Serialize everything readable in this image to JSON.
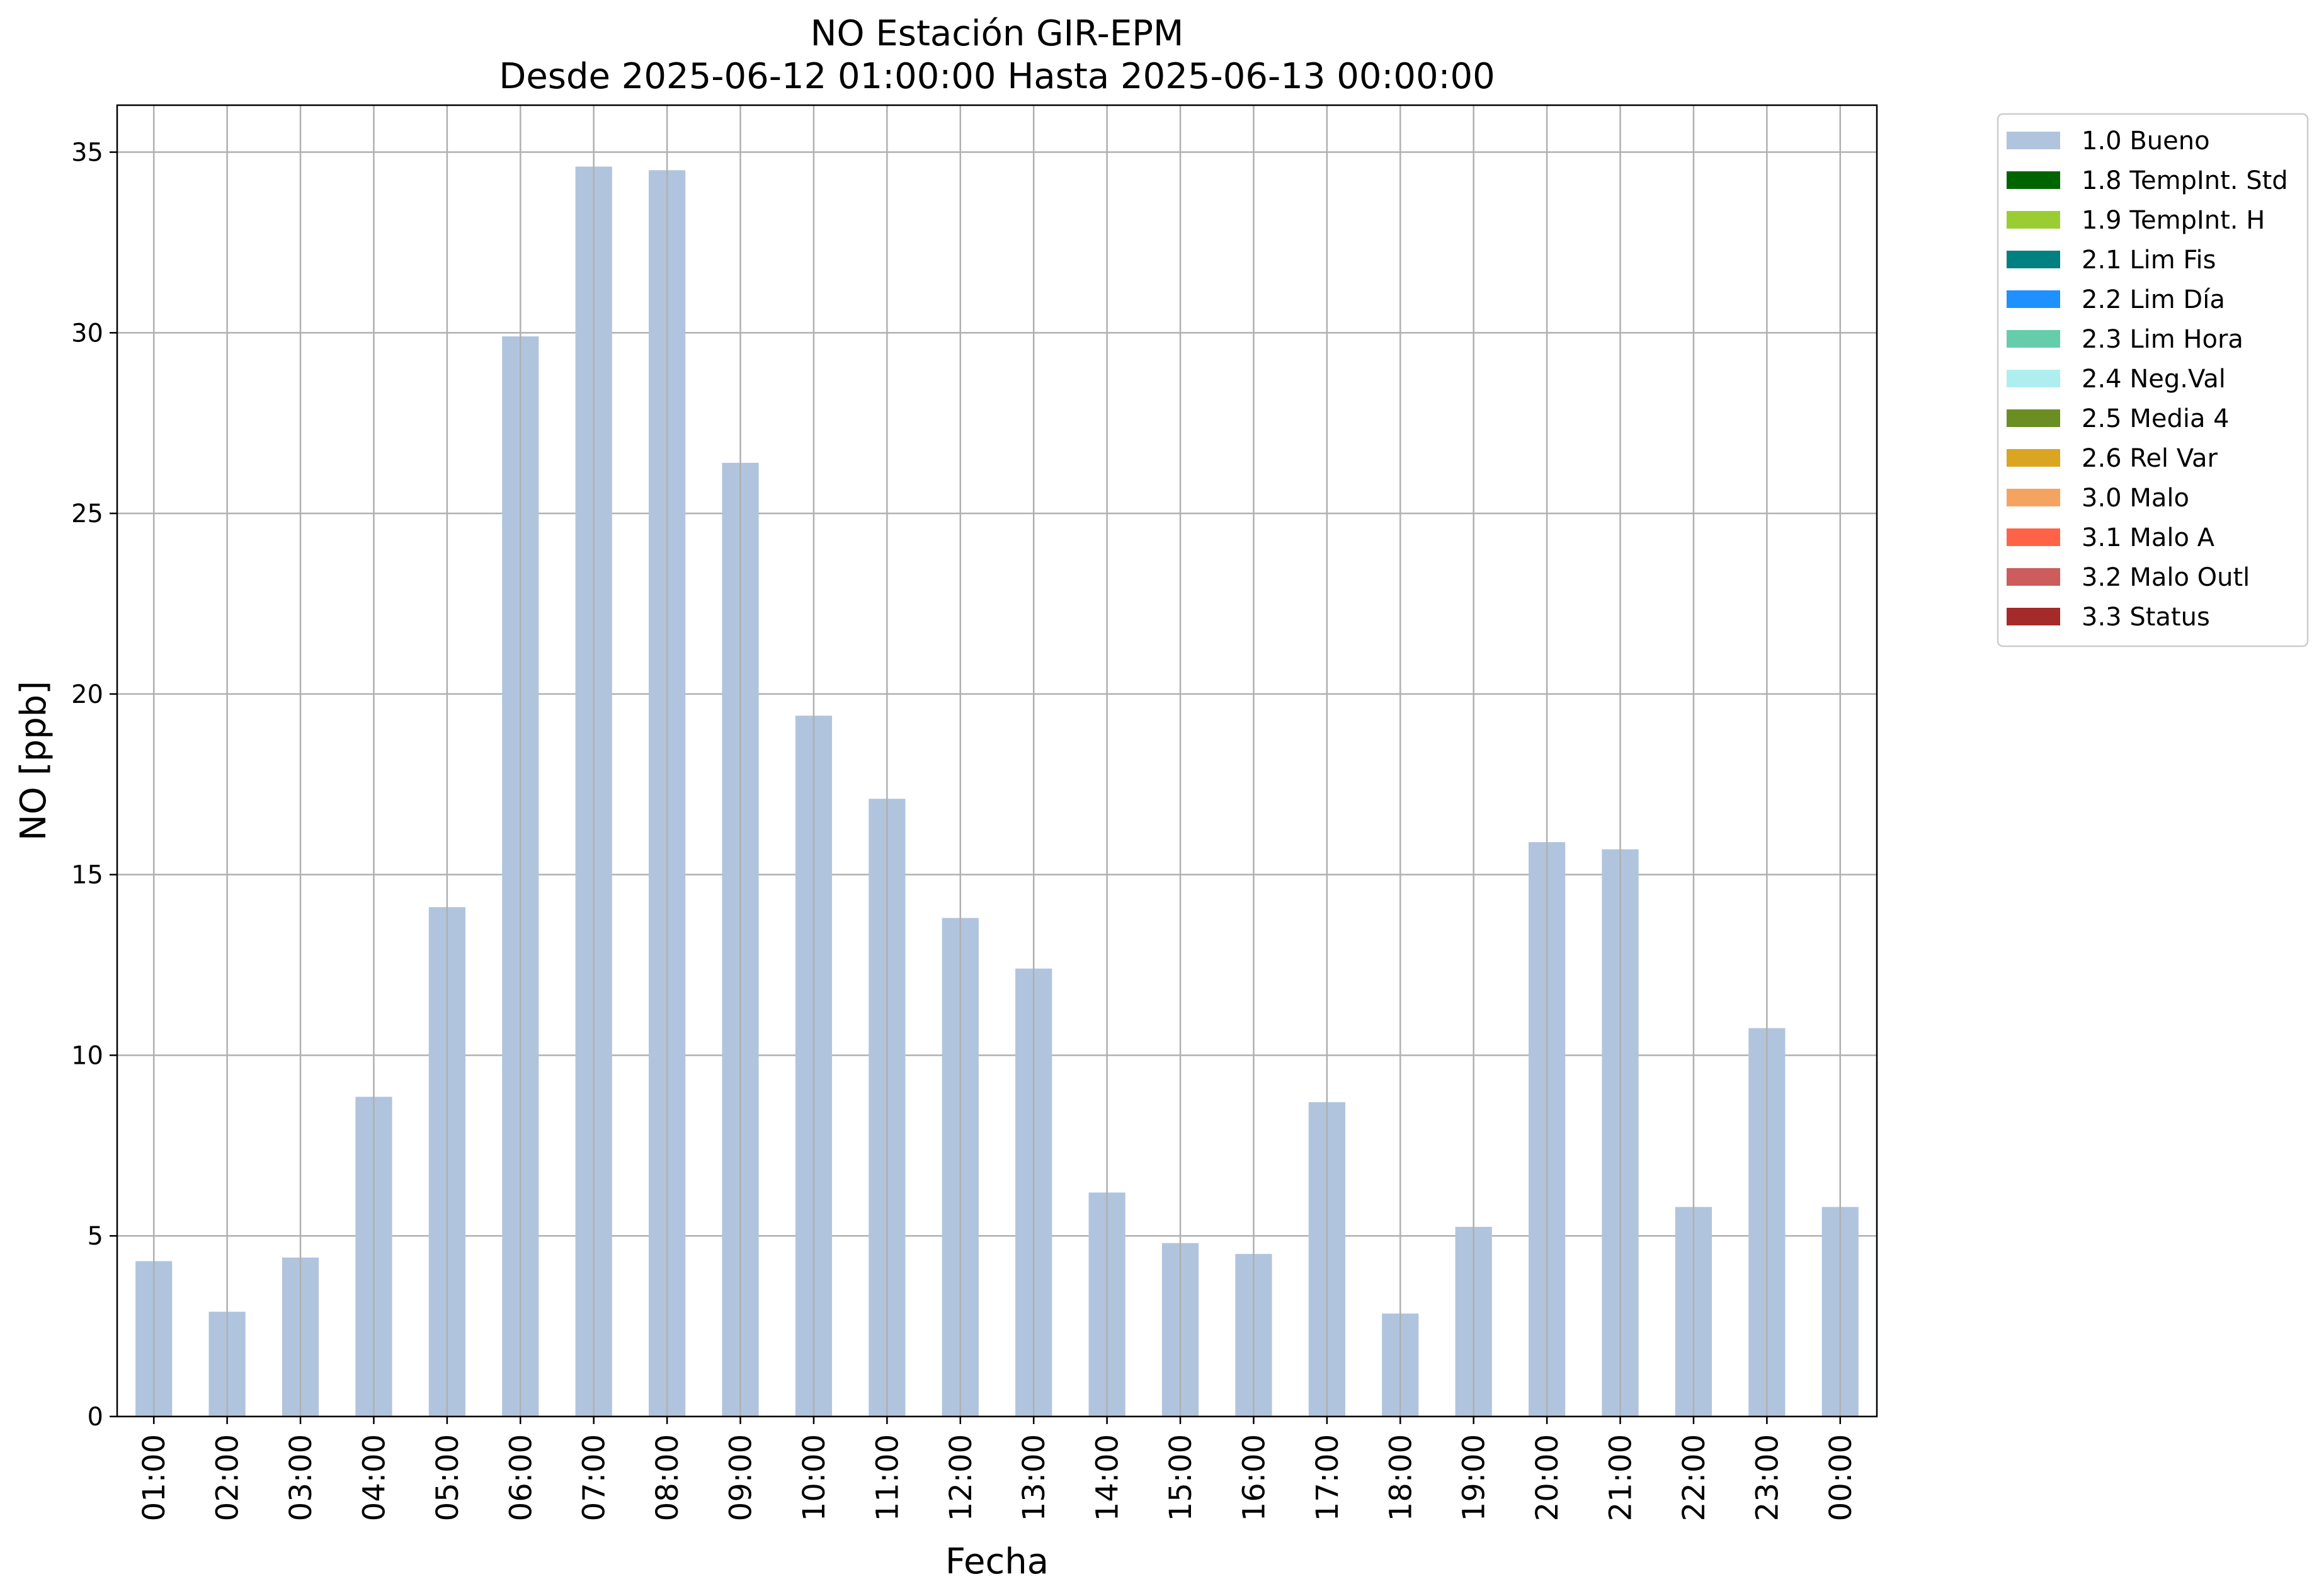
{
  "chart_data": {
    "type": "bar",
    "title": "NO Estación GIR-EPM",
    "subtitle": "Desde 2025-06-12 01:00:00 Hasta 2025-06-13 00:00:00",
    "xlabel": "Fecha",
    "ylabel": "NO [ppb]",
    "categories": [
      "01:00",
      "02:00",
      "03:00",
      "04:00",
      "05:00",
      "06:00",
      "07:00",
      "08:00",
      "09:00",
      "10:00",
      "11:00",
      "12:00",
      "13:00",
      "14:00",
      "15:00",
      "16:00",
      "17:00",
      "18:00",
      "19:00",
      "20:00",
      "21:00",
      "22:00",
      "23:00",
      "00:00"
    ],
    "series": [
      {
        "name": "1.0 Bueno",
        "color": "#b0c4de",
        "values": [
          4.3,
          2.9,
          4.4,
          8.85,
          14.1,
          29.9,
          34.6,
          34.5,
          26.4,
          19.4,
          17.1,
          13.8,
          12.4,
          6.2,
          4.8,
          4.5,
          8.7,
          2.85,
          5.25,
          15.9,
          15.7,
          5.8,
          10.75,
          5.8
        ]
      }
    ],
    "ylim": [
      0,
      36.3
    ],
    "yticks": [
      0,
      5,
      10,
      15,
      20,
      25,
      30,
      35
    ],
    "grid": true,
    "legend_position": "outside-top-right",
    "legend": [
      {
        "label": "1.0 Bueno",
        "color": "#b0c4de"
      },
      {
        "label": "1.8 TempInt. Std",
        "color": "#006400"
      },
      {
        "label": "1.9 TempInt. H",
        "color": "#9acd32"
      },
      {
        "label": "2.1 Lim Fis",
        "color": "#008080"
      },
      {
        "label": "2.2 Lim Día",
        "color": "#1e90ff"
      },
      {
        "label": "2.3 Lim Hora",
        "color": "#66cdaa"
      },
      {
        "label": "2.4 Neg.Val",
        "color": "#afeeee"
      },
      {
        "label": "2.5 Media 4",
        "color": "#6b8e23"
      },
      {
        "label": "2.6 Rel Var",
        "color": "#daa520"
      },
      {
        "label": "3.0 Malo",
        "color": "#f4a460"
      },
      {
        "label": "3.1 Malo A",
        "color": "#ff6347"
      },
      {
        "label": "3.2 Malo Outl",
        "color": "#cd5c5c"
      },
      {
        "label": "3.3 Status",
        "color": "#a52a2a"
      }
    ]
  }
}
